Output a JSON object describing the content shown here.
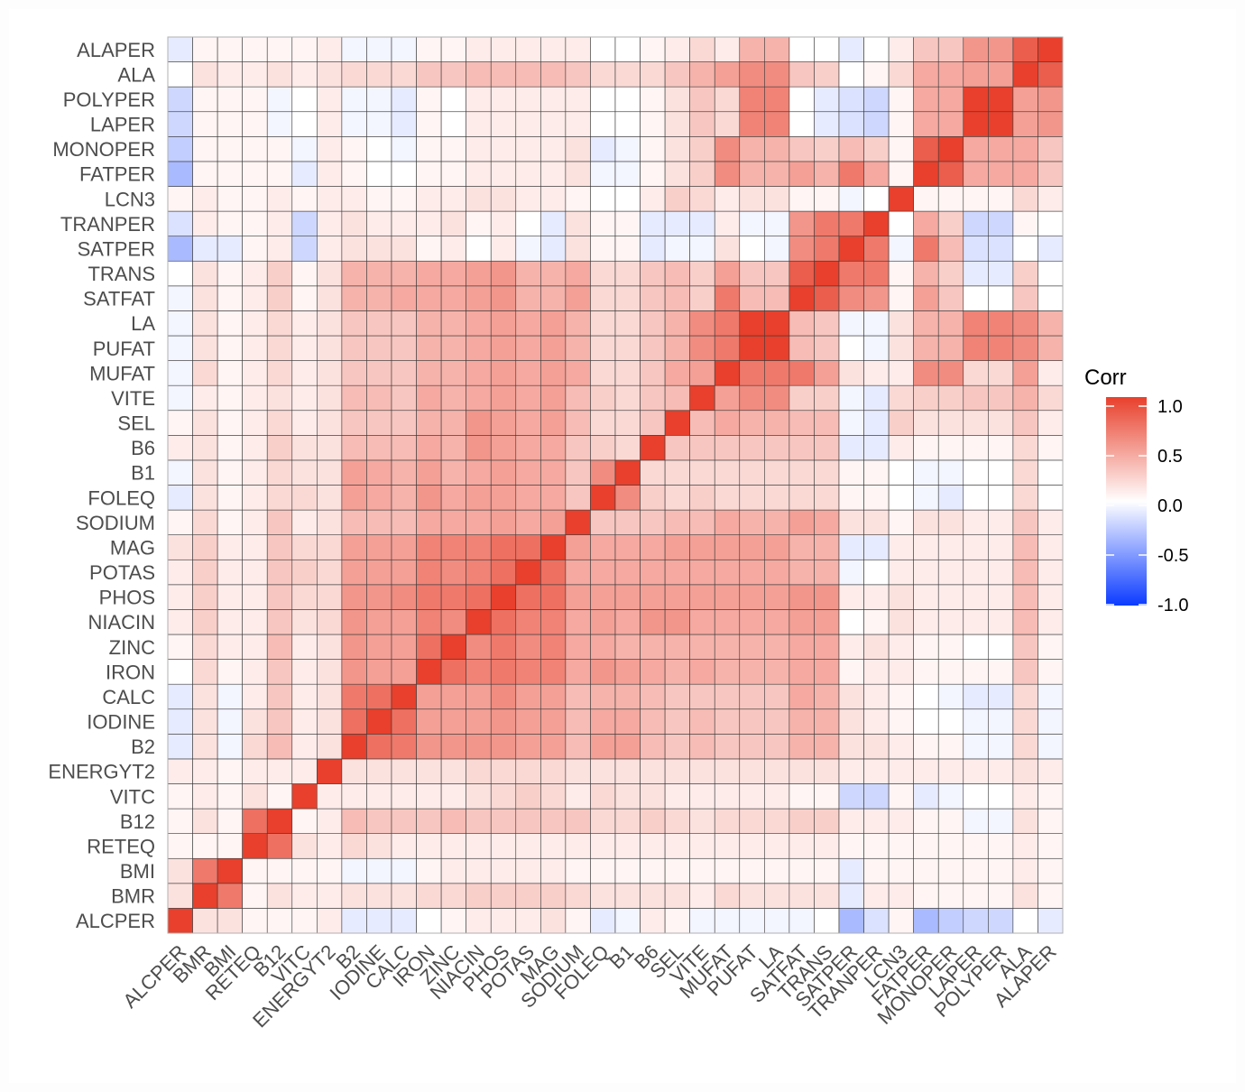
{
  "chart_data": {
    "type": "heatmap",
    "title": "",
    "xlabel": "",
    "ylabel": "",
    "variables": [
      "ALCPER",
      "BMR",
      "BMI",
      "RETEQ",
      "B12",
      "VITC",
      "ENERGYT2",
      "B2",
      "IODINE",
      "CALC",
      "IRON",
      "ZINC",
      "NIACIN",
      "PHOS",
      "POTAS",
      "MAG",
      "SODIUM",
      "FOLEQ",
      "B1",
      "B6",
      "SEL",
      "VITE",
      "MUFAT",
      "PUFAT",
      "LA",
      "SATFAT",
      "TRANS",
      "SATPER",
      "TRANPER",
      "LCN3",
      "FATPER",
      "MONOPER",
      "LAPER",
      "POLYPER",
      "ALA",
      "ALAPER"
    ],
    "matrix": [
      [
        1.0,
        0.15,
        0.15,
        0.05,
        0.05,
        0.05,
        0.1,
        -0.1,
        -0.1,
        -0.1,
        0.0,
        0.05,
        0.1,
        0.1,
        0.1,
        0.15,
        0.05,
        -0.1,
        -0.05,
        0.1,
        0.05,
        -0.05,
        -0.05,
        -0.05,
        -0.05,
        -0.05,
        0.0,
        -0.35,
        -0.15,
        0.05,
        -0.35,
        -0.25,
        -0.2,
        -0.2,
        0.0,
        -0.1
      ],
      [
        0.15,
        1.0,
        0.7,
        0.05,
        0.15,
        0.1,
        0.1,
        0.15,
        0.15,
        0.15,
        0.2,
        0.2,
        0.25,
        0.25,
        0.25,
        0.25,
        0.2,
        0.15,
        0.15,
        0.15,
        0.15,
        0.1,
        0.2,
        0.15,
        0.15,
        0.15,
        0.15,
        -0.1,
        0.1,
        0.1,
        0.05,
        0.05,
        0.05,
        0.05,
        0.15,
        0.05
      ],
      [
        0.15,
        0.7,
        1.0,
        0.05,
        0.05,
        0.05,
        0.05,
        -0.05,
        -0.05,
        -0.05,
        0.05,
        0.1,
        0.1,
        0.1,
        0.1,
        0.1,
        0.05,
        0.05,
        0.05,
        0.05,
        0.05,
        0.05,
        0.05,
        0.05,
        0.05,
        0.05,
        0.05,
        -0.1,
        0.05,
        0.05,
        0.05,
        0.05,
        0.05,
        0.05,
        0.1,
        0.05
      ],
      [
        0.05,
        0.05,
        0.05,
        1.0,
        0.75,
        0.15,
        0.1,
        0.2,
        0.15,
        0.1,
        0.1,
        0.1,
        0.1,
        0.1,
        0.1,
        0.1,
        0.1,
        0.1,
        0.1,
        0.1,
        0.1,
        0.1,
        0.1,
        0.1,
        0.1,
        0.1,
        0.1,
        0.05,
        0.05,
        0.05,
        0.05,
        0.05,
        0.05,
        0.05,
        0.1,
        0.05
      ],
      [
        0.05,
        0.15,
        0.05,
        0.75,
        1.0,
        0.05,
        0.1,
        0.35,
        0.3,
        0.3,
        0.3,
        0.35,
        0.3,
        0.3,
        0.3,
        0.3,
        0.3,
        0.2,
        0.2,
        0.25,
        0.2,
        0.15,
        0.2,
        0.2,
        0.2,
        0.25,
        0.25,
        0.1,
        0.1,
        0.1,
        0.05,
        0.05,
        -0.05,
        -0.05,
        0.15,
        0.05
      ],
      [
        0.05,
        0.1,
        0.05,
        0.15,
        0.05,
        1.0,
        0.1,
        0.1,
        0.1,
        0.1,
        0.1,
        0.1,
        0.15,
        0.2,
        0.25,
        0.2,
        0.1,
        0.2,
        0.15,
        0.15,
        0.1,
        0.1,
        0.1,
        0.1,
        0.1,
        0.05,
        0.05,
        -0.2,
        -0.2,
        0.05,
        -0.1,
        -0.05,
        0.0,
        0.0,
        0.1,
        0.05
      ],
      [
        0.1,
        0.1,
        0.05,
        0.1,
        0.1,
        0.1,
        1.0,
        0.15,
        0.15,
        0.15,
        0.15,
        0.15,
        0.2,
        0.2,
        0.2,
        0.2,
        0.15,
        0.15,
        0.15,
        0.15,
        0.15,
        0.15,
        0.15,
        0.15,
        0.15,
        0.15,
        0.15,
        0.1,
        0.1,
        0.1,
        0.1,
        0.1,
        0.1,
        0.1,
        0.15,
        0.1
      ],
      [
        -0.1,
        0.15,
        -0.05,
        0.2,
        0.35,
        0.1,
        0.15,
        1.0,
        0.75,
        0.7,
        0.55,
        0.55,
        0.55,
        0.55,
        0.5,
        0.5,
        0.35,
        0.5,
        0.5,
        0.35,
        0.3,
        0.35,
        0.3,
        0.3,
        0.3,
        0.4,
        0.4,
        0.15,
        0.15,
        0.1,
        0.05,
        0.05,
        -0.05,
        -0.05,
        0.2,
        -0.05
      ],
      [
        -0.1,
        0.15,
        -0.05,
        0.15,
        0.3,
        0.1,
        0.15,
        0.75,
        1.0,
        0.75,
        0.5,
        0.5,
        0.5,
        0.55,
        0.5,
        0.5,
        0.35,
        0.45,
        0.45,
        0.35,
        0.3,
        0.35,
        0.3,
        0.3,
        0.3,
        0.4,
        0.4,
        0.15,
        0.1,
        0.05,
        0.0,
        0.0,
        -0.05,
        -0.05,
        0.2,
        -0.05
      ],
      [
        -0.1,
        0.15,
        -0.05,
        0.1,
        0.3,
        0.1,
        0.15,
        0.7,
        0.75,
        1.0,
        0.5,
        0.5,
        0.5,
        0.6,
        0.5,
        0.5,
        0.35,
        0.4,
        0.4,
        0.35,
        0.3,
        0.3,
        0.3,
        0.3,
        0.3,
        0.45,
        0.4,
        0.15,
        0.1,
        0.05,
        0.0,
        -0.05,
        -0.1,
        -0.1,
        0.2,
        -0.05
      ],
      [
        0.0,
        0.2,
        0.05,
        0.1,
        0.3,
        0.1,
        0.15,
        0.55,
        0.5,
        0.5,
        1.0,
        0.75,
        0.65,
        0.7,
        0.65,
        0.65,
        0.45,
        0.55,
        0.5,
        0.45,
        0.4,
        0.45,
        0.4,
        0.4,
        0.4,
        0.45,
        0.45,
        0.05,
        0.1,
        0.1,
        0.05,
        0.05,
        0.05,
        0.05,
        0.3,
        0.05
      ],
      [
        0.05,
        0.2,
        0.1,
        0.1,
        0.35,
        0.1,
        0.15,
        0.55,
        0.5,
        0.5,
        0.75,
        1.0,
        0.6,
        0.7,
        0.6,
        0.65,
        0.45,
        0.45,
        0.4,
        0.4,
        0.4,
        0.4,
        0.4,
        0.4,
        0.4,
        0.45,
        0.45,
        0.1,
        0.15,
        0.1,
        0.05,
        0.05,
        0.0,
        0.0,
        0.3,
        0.05
      ],
      [
        0.1,
        0.25,
        0.1,
        0.1,
        0.3,
        0.15,
        0.2,
        0.55,
        0.5,
        0.5,
        0.65,
        0.6,
        1.0,
        0.75,
        0.65,
        0.65,
        0.45,
        0.5,
        0.45,
        0.55,
        0.55,
        0.45,
        0.45,
        0.45,
        0.45,
        0.5,
        0.5,
        0.0,
        0.05,
        0.15,
        0.1,
        0.1,
        0.1,
        0.1,
        0.35,
        0.1
      ],
      [
        0.1,
        0.25,
        0.1,
        0.1,
        0.3,
        0.2,
        0.2,
        0.55,
        0.55,
        0.6,
        0.7,
        0.7,
        0.75,
        1.0,
        0.75,
        0.75,
        0.5,
        0.5,
        0.5,
        0.5,
        0.5,
        0.5,
        0.5,
        0.5,
        0.5,
        0.55,
        0.55,
        0.1,
        0.1,
        0.15,
        0.1,
        0.1,
        0.1,
        0.1,
        0.35,
        0.1
      ],
      [
        0.1,
        0.25,
        0.1,
        0.1,
        0.3,
        0.25,
        0.2,
        0.5,
        0.5,
        0.5,
        0.65,
        0.6,
        0.65,
        0.75,
        1.0,
        0.75,
        0.45,
        0.45,
        0.45,
        0.45,
        0.45,
        0.45,
        0.45,
        0.45,
        0.45,
        0.4,
        0.4,
        -0.05,
        0.0,
        0.1,
        0.1,
        0.1,
        0.1,
        0.1,
        0.35,
        0.1
      ],
      [
        0.15,
        0.25,
        0.1,
        0.1,
        0.3,
        0.2,
        0.2,
        0.5,
        0.5,
        0.5,
        0.65,
        0.65,
        0.65,
        0.75,
        0.75,
        1.0,
        0.5,
        0.45,
        0.45,
        0.45,
        0.5,
        0.5,
        0.5,
        0.5,
        0.5,
        0.4,
        0.4,
        -0.1,
        -0.1,
        0.1,
        0.1,
        0.1,
        0.1,
        0.1,
        0.35,
        0.1
      ],
      [
        0.05,
        0.2,
        0.05,
        0.1,
        0.3,
        0.1,
        0.15,
        0.35,
        0.35,
        0.35,
        0.45,
        0.45,
        0.45,
        0.5,
        0.45,
        0.5,
        1.0,
        0.3,
        0.3,
        0.3,
        0.35,
        0.35,
        0.45,
        0.4,
        0.4,
        0.5,
        0.45,
        0.15,
        0.15,
        0.05,
        0.15,
        0.15,
        0.1,
        0.1,
        0.3,
        0.1
      ],
      [
        -0.1,
        0.15,
        0.05,
        0.1,
        0.2,
        0.2,
        0.15,
        0.5,
        0.45,
        0.4,
        0.55,
        0.45,
        0.5,
        0.5,
        0.45,
        0.45,
        0.3,
        1.0,
        0.6,
        0.25,
        0.2,
        0.25,
        0.2,
        0.2,
        0.2,
        0.2,
        0.2,
        0.05,
        0.05,
        0.0,
        -0.05,
        -0.1,
        0.0,
        0.0,
        0.2,
        0.0
      ],
      [
        -0.05,
        0.15,
        0.05,
        0.1,
        0.2,
        0.15,
        0.15,
        0.5,
        0.45,
        0.4,
        0.5,
        0.4,
        0.45,
        0.5,
        0.45,
        0.45,
        0.3,
        0.6,
        1.0,
        0.2,
        0.2,
        0.2,
        0.2,
        0.2,
        0.2,
        0.2,
        0.2,
        0.05,
        0.05,
        0.0,
        -0.05,
        -0.05,
        0.0,
        0.0,
        0.2,
        0.0
      ],
      [
        0.1,
        0.15,
        0.05,
        0.1,
        0.25,
        0.15,
        0.15,
        0.35,
        0.35,
        0.35,
        0.45,
        0.4,
        0.55,
        0.5,
        0.45,
        0.45,
        0.3,
        0.25,
        0.2,
        1.0,
        0.3,
        0.3,
        0.3,
        0.3,
        0.3,
        0.3,
        0.3,
        -0.1,
        -0.1,
        0.1,
        0.05,
        0.05,
        0.05,
        0.05,
        0.2,
        0.05
      ],
      [
        0.05,
        0.15,
        0.05,
        0.1,
        0.2,
        0.1,
        0.15,
        0.3,
        0.3,
        0.3,
        0.4,
        0.4,
        0.55,
        0.5,
        0.45,
        0.5,
        0.35,
        0.2,
        0.2,
        0.3,
        1.0,
        0.35,
        0.45,
        0.4,
        0.4,
        0.35,
        0.35,
        -0.05,
        -0.1,
        0.25,
        0.15,
        0.15,
        0.15,
        0.15,
        0.3,
        0.1
      ],
      [
        -0.05,
        0.1,
        0.05,
        0.1,
        0.15,
        0.1,
        0.15,
        0.35,
        0.35,
        0.3,
        0.45,
        0.4,
        0.45,
        0.5,
        0.45,
        0.5,
        0.35,
        0.25,
        0.2,
        0.3,
        0.35,
        1.0,
        0.5,
        0.6,
        0.6,
        0.25,
        0.25,
        -0.05,
        -0.1,
        0.2,
        0.25,
        0.25,
        0.3,
        0.3,
        0.4,
        0.2
      ],
      [
        -0.05,
        0.2,
        0.05,
        0.1,
        0.2,
        0.1,
        0.15,
        0.3,
        0.3,
        0.3,
        0.4,
        0.4,
        0.45,
        0.5,
        0.45,
        0.5,
        0.45,
        0.2,
        0.2,
        0.3,
        0.45,
        0.5,
        1.0,
        0.7,
        0.7,
        0.7,
        0.5,
        0.15,
        0.1,
        0.1,
        0.6,
        0.6,
        0.2,
        0.2,
        0.5,
        0.1
      ],
      [
        -0.05,
        0.15,
        0.05,
        0.1,
        0.2,
        0.1,
        0.15,
        0.3,
        0.3,
        0.3,
        0.4,
        0.4,
        0.45,
        0.5,
        0.45,
        0.5,
        0.4,
        0.2,
        0.2,
        0.3,
        0.4,
        0.6,
        0.7,
        1.0,
        1.0,
        0.35,
        0.3,
        0.0,
        -0.05,
        0.15,
        0.4,
        0.4,
        0.65,
        0.65,
        0.6,
        0.4
      ],
      [
        -0.05,
        0.15,
        0.05,
        0.1,
        0.2,
        0.1,
        0.15,
        0.3,
        0.3,
        0.3,
        0.4,
        0.4,
        0.45,
        0.5,
        0.45,
        0.5,
        0.4,
        0.2,
        0.2,
        0.3,
        0.4,
        0.6,
        0.7,
        1.0,
        1.0,
        0.35,
        0.3,
        -0.05,
        -0.05,
        0.15,
        0.4,
        0.4,
        0.65,
        0.65,
        0.6,
        0.4
      ],
      [
        -0.05,
        0.15,
        0.05,
        0.1,
        0.25,
        0.05,
        0.15,
        0.4,
        0.4,
        0.45,
        0.45,
        0.45,
        0.5,
        0.55,
        0.4,
        0.4,
        0.5,
        0.2,
        0.2,
        0.3,
        0.35,
        0.25,
        0.7,
        0.35,
        0.35,
        1.0,
        0.85,
        0.6,
        0.55,
        0.05,
        0.5,
        0.3,
        0.0,
        0.0,
        0.3,
        0.0
      ],
      [
        0.0,
        0.15,
        0.05,
        0.1,
        0.25,
        0.05,
        0.15,
        0.4,
        0.4,
        0.4,
        0.45,
        0.45,
        0.5,
        0.55,
        0.4,
        0.4,
        0.45,
        0.2,
        0.2,
        0.3,
        0.35,
        0.25,
        0.5,
        0.3,
        0.3,
        0.85,
        1.0,
        0.7,
        0.7,
        0.05,
        0.4,
        0.25,
        -0.1,
        -0.1,
        0.25,
        0.0
      ],
      [
        -0.35,
        -0.1,
        -0.1,
        0.05,
        0.1,
        -0.2,
        0.1,
        0.15,
        0.15,
        0.15,
        0.05,
        0.1,
        0.0,
        0.1,
        -0.05,
        -0.1,
        0.15,
        0.05,
        0.05,
        -0.1,
        -0.05,
        -0.05,
        0.15,
        0.0,
        -0.05,
        0.6,
        0.7,
        1.0,
        0.7,
        -0.05,
        0.7,
        0.35,
        -0.15,
        -0.15,
        0.0,
        -0.1
      ],
      [
        -0.15,
        0.1,
        0.05,
        0.05,
        0.1,
        -0.2,
        0.1,
        0.15,
        0.1,
        0.1,
        0.1,
        0.15,
        0.05,
        0.1,
        0.0,
        -0.1,
        0.15,
        0.05,
        0.05,
        -0.1,
        -0.1,
        -0.1,
        0.1,
        -0.05,
        -0.05,
        0.55,
        0.7,
        0.7,
        1.0,
        0.0,
        0.45,
        0.25,
        -0.2,
        -0.2,
        0.05,
        0.0
      ],
      [
        0.05,
        0.1,
        0.05,
        0.05,
        0.1,
        0.05,
        0.1,
        0.1,
        0.05,
        0.05,
        0.1,
        0.1,
        0.15,
        0.15,
        0.1,
        0.1,
        0.05,
        0.0,
        0.0,
        0.1,
        0.25,
        0.2,
        0.1,
        0.15,
        0.15,
        0.05,
        0.05,
        -0.05,
        0.0,
        1.0,
        0.05,
        0.05,
        0.05,
        0.05,
        0.2,
        0.1
      ],
      [
        -0.35,
        0.05,
        0.05,
        0.05,
        0.05,
        -0.1,
        0.1,
        0.05,
        0.0,
        0.0,
        0.05,
        0.05,
        0.1,
        0.1,
        0.1,
        0.1,
        0.15,
        -0.05,
        -0.05,
        0.05,
        0.15,
        0.25,
        0.6,
        0.4,
        0.4,
        0.5,
        0.4,
        0.7,
        0.45,
        0.05,
        1.0,
        0.85,
        0.45,
        0.45,
        0.45,
        0.3
      ],
      [
        -0.25,
        0.05,
        0.05,
        0.05,
        0.05,
        -0.05,
        0.1,
        0.05,
        0.0,
        -0.05,
        0.05,
        0.05,
        0.1,
        0.1,
        0.1,
        0.1,
        0.15,
        -0.1,
        -0.05,
        0.05,
        0.15,
        0.25,
        0.6,
        0.4,
        0.4,
        0.3,
        0.25,
        0.35,
        0.25,
        0.05,
        0.85,
        1.0,
        0.45,
        0.45,
        0.45,
        0.3
      ],
      [
        -0.2,
        0.05,
        0.05,
        0.05,
        -0.05,
        0.0,
        0.1,
        -0.05,
        -0.05,
        -0.1,
        0.05,
        0.0,
        0.1,
        0.1,
        0.1,
        0.1,
        0.1,
        0.0,
        0.0,
        0.05,
        0.15,
        0.3,
        0.2,
        0.65,
        0.65,
        0.0,
        -0.1,
        -0.15,
        -0.2,
        0.05,
        0.45,
        0.45,
        1.0,
        1.0,
        0.5,
        0.55
      ],
      [
        -0.2,
        0.05,
        0.05,
        0.05,
        -0.05,
        0.0,
        0.1,
        -0.05,
        -0.05,
        -0.1,
        0.05,
        0.0,
        0.1,
        0.1,
        0.1,
        0.1,
        0.1,
        0.0,
        0.0,
        0.05,
        0.15,
        0.3,
        0.2,
        0.65,
        0.65,
        0.0,
        -0.1,
        -0.15,
        -0.2,
        0.05,
        0.45,
        0.45,
        1.0,
        1.0,
        0.5,
        0.55
      ],
      [
        0.0,
        0.15,
        0.1,
        0.1,
        0.15,
        0.1,
        0.15,
        0.2,
        0.2,
        0.2,
        0.3,
        0.3,
        0.35,
        0.35,
        0.35,
        0.35,
        0.3,
        0.2,
        0.2,
        0.2,
        0.3,
        0.4,
        0.5,
        0.6,
        0.6,
        0.3,
        0.25,
        0.0,
        0.05,
        0.2,
        0.45,
        0.45,
        0.5,
        0.5,
        1.0,
        0.85
      ],
      [
        -0.1,
        0.05,
        0.05,
        0.05,
        0.05,
        0.05,
        0.1,
        -0.05,
        -0.05,
        -0.05,
        0.05,
        0.05,
        0.1,
        0.1,
        0.1,
        0.1,
        0.1,
        0.0,
        0.0,
        0.05,
        0.1,
        0.2,
        0.1,
        0.4,
        0.4,
        0.0,
        0.0,
        -0.1,
        0.0,
        0.1,
        0.3,
        0.3,
        0.55,
        0.55,
        0.85,
        1.0
      ]
    ],
    "legend": {
      "title": "Corr",
      "ticks": [
        "1.0",
        "0.5",
        "0.0",
        "-0.5",
        "-1.0"
      ],
      "tick_values": [
        1.0,
        0.5,
        0.0,
        -0.5,
        -1.0
      ],
      "placement": "right"
    },
    "scale": {
      "low": "#0b3bff",
      "mid": "#ffffff",
      "high": "#e8402c",
      "limits": [
        -1,
        1
      ]
    },
    "grid": false
  }
}
